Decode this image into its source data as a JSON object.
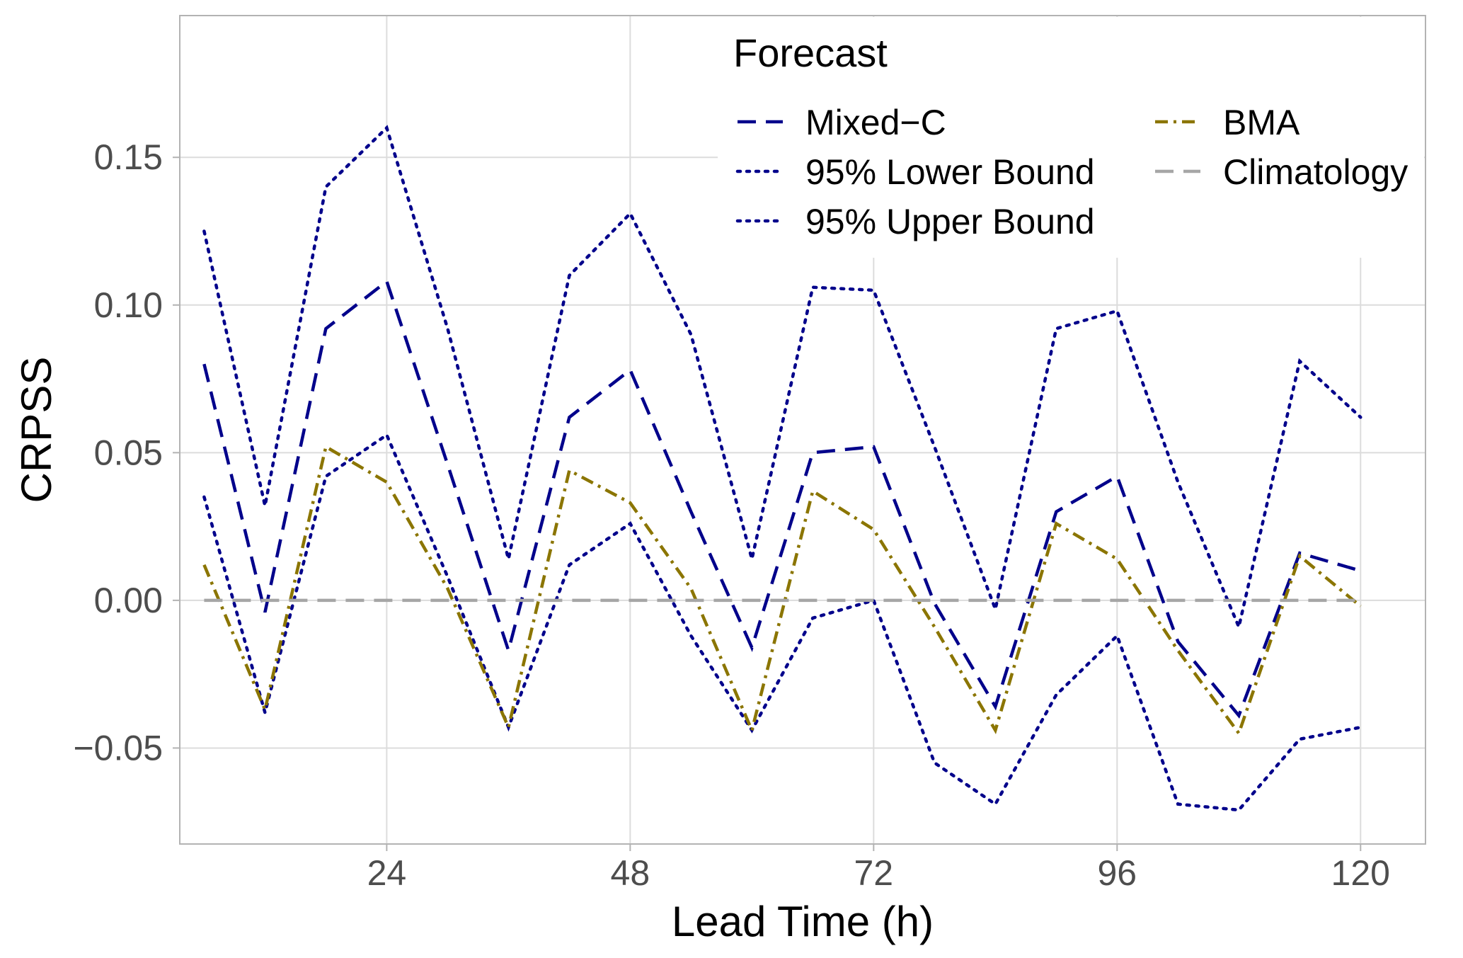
{
  "chart_data": {
    "type": "line",
    "title": "",
    "xlabel": "Lead Time (h)",
    "ylabel": "CRPSS",
    "xlim": [
      3.6,
      126.4
    ],
    "ylim": [
      -0.0825,
      0.198
    ],
    "xticks": [
      24,
      48,
      72,
      96,
      120
    ],
    "xtick_labels": [
      "24",
      "48",
      "72",
      "96",
      "120"
    ],
    "yticks": [
      -0.05,
      0.0,
      0.05,
      0.1,
      0.15
    ],
    "ytick_labels": [
      "−0.05",
      "0.00",
      "0.05",
      "0.10",
      "0.15"
    ],
    "grid": true,
    "x": [
      6,
      12,
      18,
      24,
      30,
      36,
      42,
      48,
      54,
      60,
      66,
      72,
      78,
      84,
      90,
      96,
      102,
      108,
      114,
      120
    ],
    "series": [
      {
        "name": "Mixed−C",
        "color": "#00008b",
        "dash": "long-dash",
        "values": [
          0.08,
          -0.004,
          0.092,
          0.108,
          0.046,
          -0.017,
          0.062,
          0.078,
          0.03,
          -0.016,
          0.05,
          0.052,
          -0.001,
          -0.036,
          0.03,
          0.042,
          -0.014,
          -0.039,
          0.016,
          0.01
        ]
      },
      {
        "name": "95% Lower Bound",
        "color": "#00008b",
        "dash": "dotted",
        "values": [
          0.035,
          -0.038,
          0.042,
          0.056,
          0.008,
          -0.043,
          0.012,
          0.026,
          -0.012,
          -0.044,
          -0.006,
          0.0,
          -0.055,
          -0.069,
          -0.032,
          -0.012,
          -0.069,
          -0.071,
          -0.047,
          -0.043
        ]
      },
      {
        "name": "95% Upper Bound",
        "color": "#00008b",
        "dash": "dotted",
        "values": [
          0.125,
          0.032,
          0.14,
          0.16,
          0.092,
          0.014,
          0.11,
          0.131,
          0.09,
          0.014,
          0.106,
          0.105,
          0.052,
          -0.003,
          0.092,
          0.098,
          0.04,
          -0.009,
          0.081,
          0.062
        ]
      },
      {
        "name": "BMA",
        "color": "#8b7500",
        "dash": "dot-dash",
        "values": [
          0.012,
          -0.037,
          0.052,
          0.04,
          0.004,
          -0.043,
          0.044,
          0.033,
          0.004,
          -0.044,
          0.037,
          0.024,
          -0.009,
          -0.044,
          0.026,
          0.014,
          -0.017,
          -0.045,
          0.015,
          -0.002
        ]
      },
      {
        "name": "Climatology",
        "color": "#a6a6a6",
        "dash": "long-dash",
        "values": [
          0.0,
          0.0,
          0.0,
          0.0,
          0.0,
          0.0,
          0.0,
          0.0,
          0.0,
          0.0,
          0.0,
          0.0,
          0.0,
          0.0,
          0.0,
          0.0,
          0.0,
          0.0,
          0.0,
          0.0
        ]
      }
    ],
    "legend": {
      "title": "Forecast",
      "position": "top-right",
      "columns": [
        [
          "Mixed−C",
          "95% Lower Bound",
          "95% Upper Bound"
        ],
        [
          "BMA",
          "Climatology"
        ]
      ]
    }
  }
}
